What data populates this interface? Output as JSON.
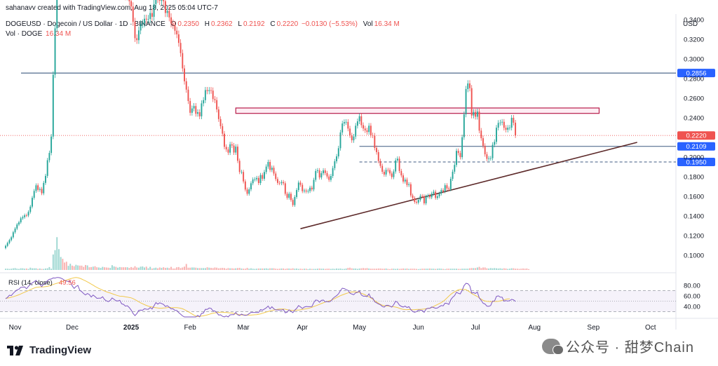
{
  "header": {
    "credit": "sahanavv created with TradingView.com, Aug 18, 2025 05:04 UTC-7",
    "symbol": "DOGEUSD · Dogecoin / US Dollar · 1D · BINANCE",
    "ohlc": {
      "o_label": "O",
      "o": "0.2350",
      "h_label": "H",
      "h": "0.2362",
      "l_label": "L",
      "l": "0.2192",
      "c_label": "C",
      "c": "0.2220",
      "change": "−0.0130 (−5.53%)",
      "vol_label": "Vol",
      "vol": "16.34 M"
    },
    "volume_line_label": "Vol · DOGE",
    "volume_line_value": "16.34 M"
  },
  "axis_unit": "USD",
  "rsi_label": "RSI (14, close)",
  "rsi_value": "49.56",
  "logo_text": "TradingView",
  "watermark": "公众号 · 甜梦Chain",
  "colors": {
    "up": "#26a69a",
    "down": "#ef5350",
    "resistance_line": "#3d5a80",
    "zone_border": "#b71c4a",
    "trendline": "#5d2a2a",
    "rsi": "#7e57c2",
    "rsi_ma": "#f2c94c",
    "last_price_badge": "#ef5350",
    "level_badge": "#2962ff"
  },
  "chart_data": {
    "type": "candlestick",
    "price_ticks": [
      "0.3400",
      "0.3200",
      "0.3000",
      "0.2800",
      "0.2600",
      "0.2400",
      "0.2000",
      "0.1800",
      "0.1600",
      "0.1400",
      "0.1200",
      "0.1000"
    ],
    "price_range": [
      0.085,
      0.36
    ],
    "x_labels": [
      "Nov",
      "Dec",
      "2025",
      "Feb",
      "Mar",
      "Apr",
      "May",
      "Jun",
      "Jul",
      "Aug",
      "Sep",
      "Oct"
    ],
    "x_domain_days": [
      0,
      345
    ],
    "x_label_days": [
      5,
      35,
      66,
      97,
      125,
      156,
      186,
      217,
      247,
      278,
      309,
      339
    ],
    "levels": [
      {
        "price": 0.2856,
        "label": "0.2856",
        "style": "solid",
        "span": "full"
      },
      {
        "price": 0.2109,
        "label": "0.2109",
        "style": "solid",
        "span": "right"
      },
      {
        "price": 0.195,
        "label": "0.1950",
        "style": "dashed",
        "span": "right"
      }
    ],
    "last_price": {
      "price": 0.222,
      "label": "0.2220"
    },
    "resistance_zone": {
      "top": 0.25,
      "bottom": 0.2445,
      "day_start": 121,
      "day_end": 312
    },
    "trendline": {
      "d1": 155,
      "p1": 0.127,
      "d2": 332,
      "p2": 0.215
    },
    "closes": [
      0.1095,
      0.1125,
      0.1154,
      0.1183,
      0.1234,
      0.1271,
      0.1313,
      0.1335,
      0.1376,
      0.1388,
      0.1407,
      0.1405,
      0.1441,
      0.1495,
      0.1585,
      0.1655,
      0.1712,
      0.1666,
      0.1675,
      0.1631,
      0.1737,
      0.1808,
      0.1968,
      0.2042,
      0.2209,
      0.2839,
      0.3311,
      0.3701,
      0.3861,
      0.3896,
      0.3892,
      0.3821,
      0.3806,
      0.3879,
      0.3926,
      0.3823,
      0.3745,
      0.3879,
      0.3969,
      0.3773,
      0.3758,
      0.3743,
      0.3741,
      0.3793,
      0.3784,
      0.3707,
      0.3783,
      0.3761,
      0.3737,
      0.3765,
      0.3773,
      0.3829,
      0.3776,
      0.3694,
      0.3686,
      0.3771,
      0.3851,
      0.3851,
      0.3761,
      0.3791,
      0.3795,
      0.3704,
      0.369,
      0.3641,
      0.3676,
      0.3588,
      0.3534,
      0.3378,
      0.3211,
      0.3191,
      0.329,
      0.3353,
      0.3362,
      0.3409,
      0.3402,
      0.3407,
      0.3467,
      0.3429,
      0.3558,
      0.3649,
      0.3612,
      0.3592,
      0.3629,
      0.3588,
      0.3468,
      0.349,
      0.3423,
      0.3361,
      0.3345,
      0.3287,
      0.325,
      0.3163,
      0.3059,
      0.2903,
      0.2772,
      0.2687,
      0.2571,
      0.2451,
      0.2495,
      0.252,
      0.2441,
      0.2457,
      0.2415,
      0.2547,
      0.258,
      0.2682,
      0.2672,
      0.2681,
      0.2677,
      0.2591,
      0.258,
      0.2485,
      0.2387,
      0.2315,
      0.2238,
      0.2104,
      0.2078,
      0.2045,
      0.213,
      0.2118,
      0.2046,
      0.2106,
      0.1962,
      0.1848,
      0.1848,
      0.1752,
      0.1669,
      0.1626,
      0.1671,
      0.1733,
      0.1772,
      0.1774,
      0.1787,
      0.1735,
      0.1817,
      0.1779,
      0.1848,
      0.1903,
      0.195,
      0.1869,
      0.1891,
      0.1832,
      0.1776,
      0.1737,
      0.1734,
      0.1745,
      0.1733,
      0.1626,
      0.1585,
      0.1626,
      0.1563,
      0.1511,
      0.1593,
      0.1664,
      0.174,
      0.1717,
      0.1652,
      0.1659,
      0.1649,
      0.1654,
      0.1688,
      0.167,
      0.1768,
      0.1858,
      0.1865,
      0.1792,
      0.1835,
      0.1864,
      0.1837,
      0.1802,
      0.1768,
      0.1807,
      0.1887,
      0.1957,
      0.2007,
      0.209,
      0.2251,
      0.2342,
      0.2356,
      0.2358,
      0.229,
      0.2222,
      0.2171,
      0.2209,
      0.2319,
      0.2364,
      0.2416,
      0.2325,
      0.2291,
      0.2272,
      0.2255,
      0.2319,
      0.2223,
      0.2219,
      0.2093,
      0.205,
      0.196,
      0.191,
      0.185,
      0.1822,
      0.1869,
      0.1867,
      0.1833,
      0.1796,
      0.1853,
      0.1966,
      0.1983,
      0.1858,
      0.1813,
      0.1751,
      0.177,
      0.1715,
      0.1723,
      0.1609,
      0.1582,
      0.1543,
      0.1536,
      0.1564,
      0.1604,
      0.1601,
      0.1529,
      0.1599,
      0.1608,
      0.159,
      0.1628,
      0.1647,
      0.1584,
      0.16,
      0.1628,
      0.1663,
      0.1651,
      0.1713,
      0.168,
      0.1672,
      0.1778,
      0.1851,
      0.192,
      0.2063,
      0.2041,
      0.1999,
      0.2202,
      0.2435,
      0.2693,
      0.275,
      0.2702,
      0.2423,
      0.2459,
      0.2411,
      0.2463,
      0.2269,
      0.2192,
      0.2115,
      0.2028,
      0.1982,
      0.1987,
      0.1988,
      0.2125,
      0.2155,
      0.2299,
      0.2348,
      0.2352,
      0.2359,
      0.2298,
      0.2278,
      0.2299,
      0.2299,
      0.24,
      0.235,
      0.222
    ],
    "volume_max": 0.17,
    "volumes": [
      0.006,
      0.006,
      0.005,
      0.006,
      0.008,
      0.009,
      0.006,
      0.005,
      0.008,
      0.008,
      0.006,
      0.007,
      0.005,
      0.011,
      0.008,
      0.008,
      0.008,
      0.005,
      0.007,
      0.005,
      0.005,
      0.007,
      0.008,
      0.014,
      0.006,
      0.075,
      0.096,
      0.159,
      0.101,
      0.063,
      0.054,
      0.036,
      0.04,
      0.02,
      0.03,
      0.021,
      0.018,
      0.025,
      0.022,
      0.021,
      0.021,
      0.015,
      0.024,
      0.022,
      0.013,
      0.014,
      0.016,
      0.018,
      0.013,
      0.012,
      0.01,
      0.015,
      0.013,
      0.012,
      0.011,
      0.01,
      0.023,
      0.017,
      0.015,
      0.011,
      0.014,
      0.013,
      0.013,
      0.013,
      0.013,
      0.01,
      0.014,
      0.011,
      0.018,
      0.012,
      0.011,
      0.016,
      0.017,
      0.012,
      0.016,
      0.008,
      0.015,
      0.007,
      0.009,
      0.011,
      0.008,
      0.012,
      0.01,
      0.013,
      0.01,
      0.011,
      0.009,
      0.015,
      0.007,
      0.007,
      0.013,
      0.014,
      0.009,
      0.012,
      0.016,
      0.029,
      0.011,
      0.011,
      0.012,
      0.012,
      0.011,
      0.009,
      0.009,
      0.009,
      0.009,
      0.009,
      0.013,
      0.011,
      0.01,
      0.009,
      0.012,
      0.011,
      0.008,
      0.009,
      0.01,
      0.009,
      0.006,
      0.009,
      0.008,
      0.008,
      0.007,
      0.008,
      0.009,
      0.01,
      0.007,
      0.006,
      0.006,
      0.01,
      0.006,
      0.008,
      0.006,
      0.005,
      0.006,
      0.007,
      0.007,
      0.007,
      0.007,
      0.008,
      0.006,
      0.008,
      0.008,
      0.008,
      0.006,
      0.005,
      0.006,
      0.007,
      0.007,
      0.005,
      0.007,
      0.007,
      0.006,
      0.008,
      0.006,
      0.007,
      0.005,
      0.006,
      0.005,
      0.006,
      0.006,
      0.004,
      0.006,
      0.005,
      0.005,
      0.005,
      0.006,
      0.007,
      0.006,
      0.006,
      0.005,
      0.006,
      0.006,
      0.005,
      0.006,
      0.005,
      0.007,
      0.006,
      0.007,
      0.005,
      0.005,
      0.007,
      0.01,
      0.011,
      0.008,
      0.007,
      0.007,
      0.005,
      0.007,
      0.008,
      0.009,
      0.008,
      0.009,
      0.007,
      0.006,
      0.006,
      0.006,
      0.006,
      0.007,
      0.007,
      0.006,
      0.006,
      0.007,
      0.005,
      0.004,
      0.006,
      0.006,
      0.005,
      0.006,
      0.005,
      0.006,
      0.007,
      0.006,
      0.007,
      0.005,
      0.006,
      0.006,
      0.006,
      0.005,
      0.004,
      0.005,
      0.006,
      0.006,
      0.006,
      0.006,
      0.007,
      0.006,
      0.006,
      0.005,
      0.006,
      0.007,
      0.006,
      0.005,
      0.004,
      0.006,
      0.006,
      0.006,
      0.006,
      0.006,
      0.006,
      0.005,
      0.005,
      0.006,
      0.006,
      0.006,
      0.006,
      0.008,
      0.009,
      0.009,
      0.009,
      0.012,
      0.015,
      0.009,
      0.012,
      0.012,
      0.008,
      0.007,
      0.009,
      0.008,
      0.009,
      0.008,
      0.007,
      0.008,
      0.006,
      0.008,
      0.007,
      0.005,
      0.006,
      0.008,
      0.008,
      0.006,
      0.006,
      0.005,
      0.006,
      0.007,
      0.006,
      0.007,
      0.004
    ],
    "rsi_ticks": [
      "80.00",
      "60.00",
      "40.00"
    ],
    "rsi_range": [
      20,
      100
    ],
    "rsi_band": [
      30,
      70
    ],
    "rsi": [
      54.5,
      57.2,
      61.3,
      60.6,
      65.0,
      68.4,
      71.5,
      72.5,
      76.4,
      76.6,
      77.1,
      73.6,
      78.1,
      81.9,
      84.8,
      86.9,
      89.6,
      84.6,
      82.3,
      77.6,
      82.9,
      84.5,
      88.9,
      91.4,
      92.2,
      94.1,
      93.8,
      95.1,
      94.8,
      93.8,
      92.1,
      89.4,
      88.2,
      87.5,
      87.7,
      79.1,
      74.2,
      77.9,
      79.9,
      70.6,
      68.1,
      64.6,
      61.9,
      64.5,
      62.6,
      57.9,
      61.6,
      58.8,
      55.3,
      55.6,
      55.7,
      58.4,
      52.9,
      50.6,
      49.1,
      51.5,
      56.1,
      53.5,
      50.8,
      50.3,
      51.6,
      44.9,
      43.9,
      40.5,
      41.3,
      37.8,
      33.0,
      26.5,
      22.6,
      26.4,
      32.4,
      33.0,
      32.7,
      35.6,
      34.7,
      34.5,
      37.9,
      34.9,
      41.1,
      47.3,
      44.4,
      46.9,
      45.4,
      43.7,
      39.9,
      41.5,
      38.6,
      35.3,
      35.4,
      32.6,
      32.3,
      28.1,
      25.2,
      22.0,
      20.0,
      20.0,
      20.0,
      20.0,
      20.0,
      20.0,
      20.0,
      22.9,
      20.1,
      26.7,
      27.5,
      34.5,
      34.3,
      36.9,
      36.3,
      31.6,
      31.2,
      28.3,
      23.6,
      24.0,
      21.2,
      20.0,
      21.7,
      20.0,
      23.8,
      24.3,
      24.3,
      28.6,
      24.0,
      22.8,
      25.3,
      23.8,
      22.8,
      23.6,
      26.3,
      28.6,
      28.5,
      28.6,
      28.3,
      28.4,
      33.9,
      32.8,
      35.0,
      37.2,
      40.7,
      35.3,
      39.3,
      35.5,
      33.3,
      33.3,
      33.2,
      33.0,
      34.2,
      27.9,
      29.0,
      33.4,
      30.8,
      28.1,
      33.1,
      36.3,
      41.6,
      39.2,
      36.0,
      38.7,
      39.9,
      39.4,
      39.4,
      39.7,
      47.2,
      52.2,
      51.6,
      47.8,
      51.4,
      52.2,
      48.7,
      49.2,
      48.5,
      50.0,
      54.9,
      58.0,
      60.4,
      64.0,
      70.0,
      74.7,
      73.8,
      72.2,
      70.6,
      65.2,
      63.4,
      62.3,
      65.7,
      66.5,
      69.7,
      61.7,
      59.4,
      59.5,
      58.8,
      63.9,
      56.6,
      55.9,
      48.8,
      46.8,
      44.6,
      43.1,
      39.8,
      38.5,
      42.0,
      42.1,
      40.8,
      38.7,
      43.3,
      49.8,
      47.9,
      42.5,
      40.2,
      38.8,
      40.6,
      38.0,
      39.4,
      33.9,
      30.3,
      28.8,
      29.8,
      33.0,
      32.8,
      32.1,
      28.7,
      34.8,
      36.5,
      36.4,
      38.9,
      37.8,
      36.6,
      36.9,
      39.4,
      41.6,
      41.1,
      46.2,
      45.7,
      43.7,
      52.8,
      57.3,
      60.6,
      67.0,
      64.9,
      63.8,
      70.6,
      79.5,
      83.8,
      83.2,
      79.1,
      65.4,
      66.2,
      64.7,
      67.3,
      56.2,
      51.5,
      46.0,
      44.6,
      40.6,
      40.2,
      41.6,
      50.1,
      50.3,
      59.0,
      60.1,
      57.6,
      57.5,
      50.0,
      51.0,
      50.2,
      50.9,
      53.4,
      52.4,
      49.6
    ],
    "rsi_ma": [
      55.7,
      55.7,
      56.5,
      57.5,
      58.4,
      59.6,
      60.8,
      62.1,
      63.7,
      65.4,
      67.0,
      68.4,
      70.1,
      71.8,
      73.4,
      74.9,
      76.2,
      76.6,
      76.9,
      77.0,
      77.2,
      77.6,
      78.2,
      79.2,
      80.5,
      81.7,
      82.9,
      84.0,
      85.1,
      86.2,
      87.4,
      88.8,
      90.1,
      91.3,
      92.5,
      93.6,
      94.5,
      94.9,
      94.6,
      93.4,
      92.0,
      90.3,
      88.5,
      86.6,
      84.6,
      82.4,
      80.4,
      78.2,
      76.2,
      74.3,
      72.5,
      71.0,
      69.3,
      67.8,
      66.6,
      65.5,
      64.1,
      62.8,
      61.6,
      60.4,
      59.5,
      59.3,
      58.9,
      58.2,
      57.6,
      57.0,
      56.3,
      54.8,
      53.0,
      50.9,
      48.7,
      46.8,
      45.1,
      43.3,
      41.8,
      40.6,
      39.5,
      38.8,
      38.0,
      37.4,
      37.0,
      36.6,
      36.5,
      36.9,
      37.2,
      37.6,
      38.1,
      37.9,
      37.7,
      37.7,
      37.6,
      37.2,
      36.6,
      35.4,
      33.8,
      31.9,
      29.9,
      27.7,
      25.6,
      23.5,
      21.7,
      20.6,
      20.9,
      21.6,
      22.2,
      23.0,
      23.8,
      25.0,
      26.1,
      27.0,
      27.6,
      28.2,
      28.6,
      29.1,
      28.9,
      28.6,
      28.5,
      28.0,
      27.6,
      27.4,
      26.7,
      25.7,
      24.9,
      24.0,
      23.8,
      23.7,
      23.8,
      23.5,
      23.5,
      23.5,
      23.8,
      24.1,
      24.3,
      25.0,
      25.9,
      26.9,
      28.1,
      29.3,
      30.2,
      31.3,
      32.3,
      33.2,
      33.8,
      34.5,
      34.9,
      34.9,
      34.9,
      34.7,
      33.9,
      33.2,
      32.7,
      32.4,
      32.6,
      32.9,
      33.1,
      33.4,
      34.2,
      34.9,
      35.4,
      36.2,
      37.1,
      38.3,
      39.8,
      41.1,
      42.4,
      43.9,
      45.4,
      46.8,
      48.3,
      49.6,
      50.6,
      51.6,
      53.1,
      54.9,
      56.8,
      58.7,
      60.4,
      61.9,
      63.2,
      64.5,
      65.6,
      66.7,
      67.5,
      67.7,
      67.5,
      67.3,
      66.6,
      65.0,
      63.5,
      62.0,
      60.2,
      58.2,
      56.0,
      53.7,
      51.0,
      48.4,
      46.1,
      43.8,
      42.3,
      41.5,
      41.0,
      40.8,
      40.2,
      39.5,
      39.3,
      38.7,
      37.8,
      36.6,
      35.3,
      34.3,
      34.0,
      33.8,
      34.1,
      33.8,
      33.6,
      33.7,
      34.1,
      34.4,
      34.4,
      34.7,
      35.1,
      35.7,
      36.2,
      36.5,
      38.0,
      39.9,
      41.7,
      43.6,
      45.5,
      47.2,
      49.4,
      52.6,
      56.0,
      59.5,
      62.9,
      65.6,
      67.7,
      69.8,
      71.4,
      72.4,
      72.6,
      72.4,
      71.7,
      69.7,
      67.3,
      64.6,
      62.5,
      60.7,
      58.8,
      56.1,
      53.7,
      51.5,
      50.3,
      49.7,
      49.4,
      49.0,
      49.3,
      49.4,
      49.5,
      49.7,
      50.5,
      51.3,
      52.3,
      53.5,
      54.2,
      54.4
    ]
  }
}
